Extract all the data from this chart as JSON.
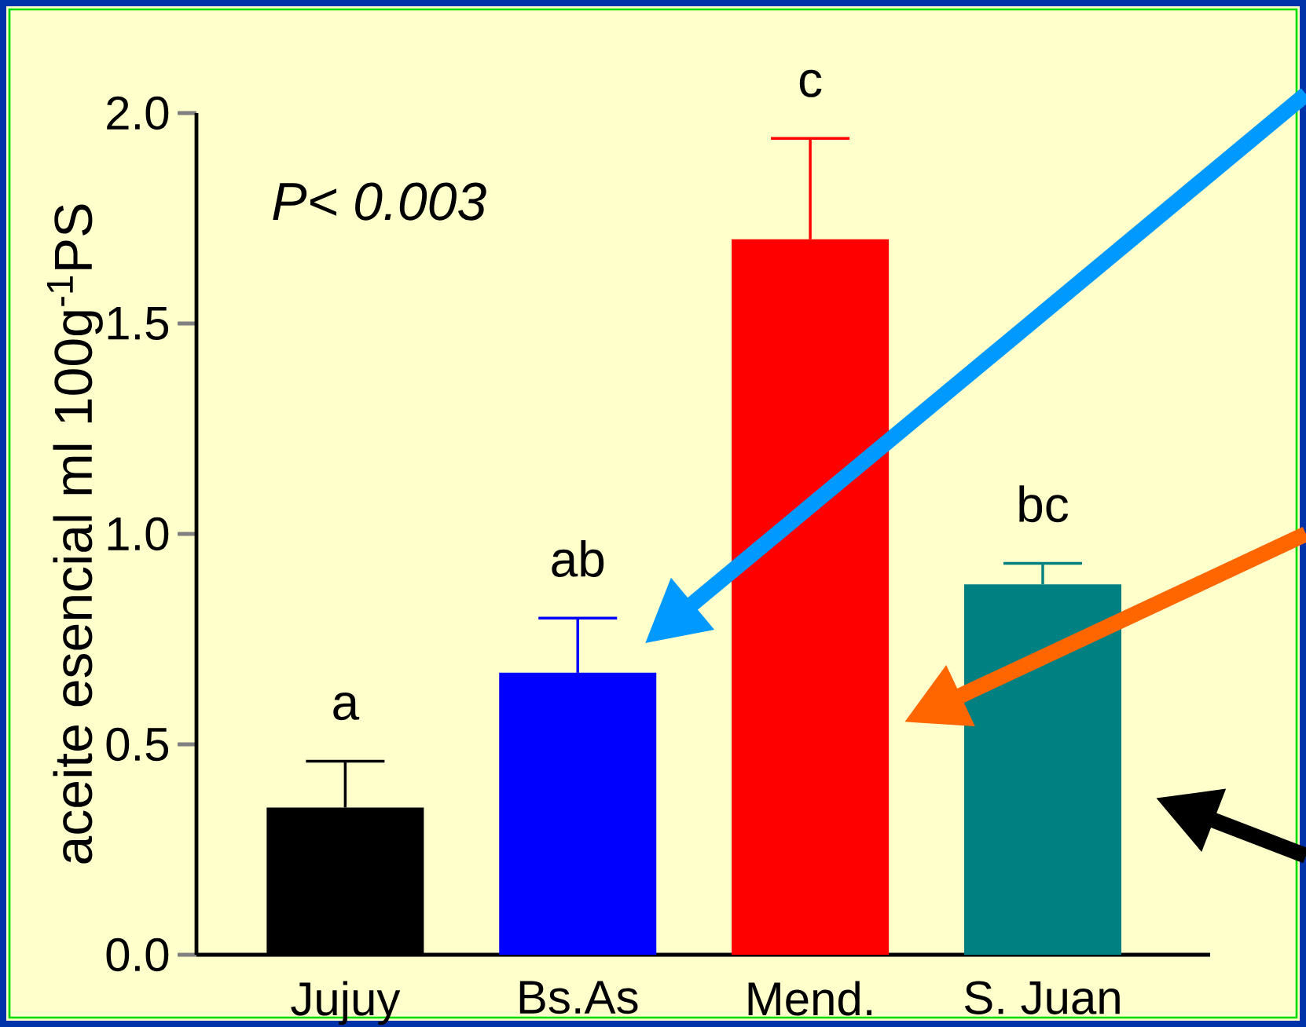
{
  "chart_data": {
    "type": "bar",
    "categories": [
      "Jujuy",
      "Bs.As",
      "Mend.",
      "S. Juan"
    ],
    "values": [
      0.35,
      0.67,
      1.7,
      0.88
    ],
    "colors": [
      "#000000",
      "#0000ff",
      "#ff0000",
      "#008080"
    ],
    "errors": [
      [
        0.35,
        0.46
      ],
      [
        0.67,
        0.8
      ],
      [
        1.7,
        1.94
      ],
      [
        0.88,
        0.93
      ]
    ],
    "ylabel": "aceite esencial ml 100g$^{-1}$PS",
    "ylim": [
      0,
      2.0
    ],
    "yticks": [
      {
        "value": 0,
        "label": "0.0"
      },
      0.5,
      {
        "value": 1.0,
        "label": "1.0"
      },
      1.5,
      {
        "value": 2.0,
        "label": "2.0"
      }
    ],
    "annotations": [
      "P< 0.003",
      "a",
      "ab",
      "c",
      "bc"
    ]
  }
}
